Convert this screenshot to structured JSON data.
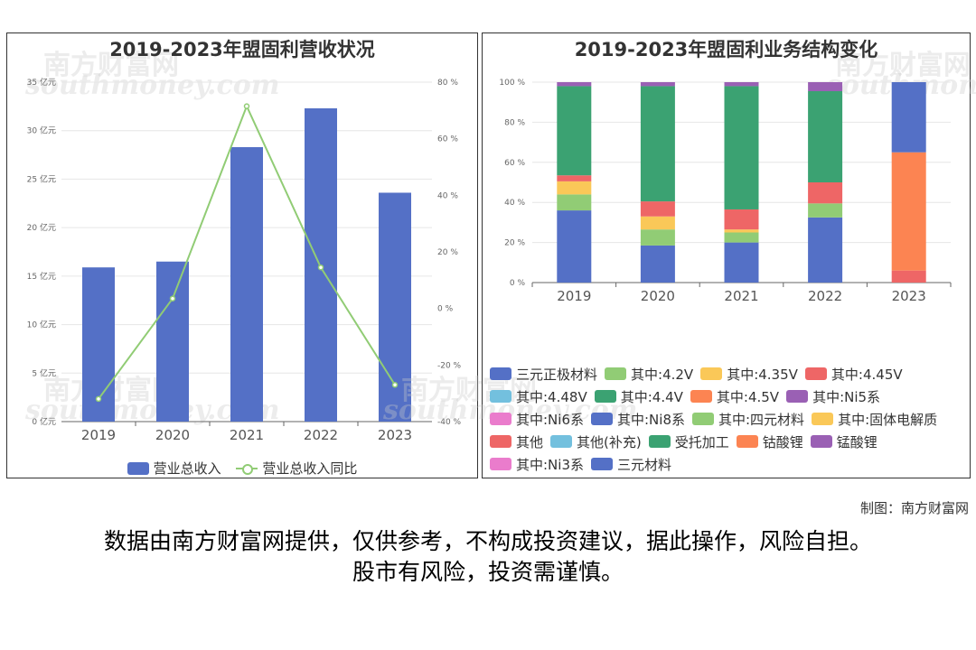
{
  "watermark": {
    "cn": "南方财富网",
    "en": "southmoney.com"
  },
  "chart_data": [
    {
      "type": "bar",
      "title": "2019-2023年盟固利营收状况",
      "categories": [
        "2019",
        "2020",
        "2021",
        "2022",
        "2023"
      ],
      "series": [
        {
          "name": "营业总收入",
          "type": "bar",
          "axis": "left",
          "color": "#5470c6",
          "values": [
            15.9,
            16.5,
            28.3,
            32.3,
            23.6
          ]
        },
        {
          "name": "营业总收入同比",
          "type": "line",
          "axis": "right",
          "color": "#91cc75",
          "values": [
            -32,
            3.5,
            71.5,
            14.5,
            -27
          ]
        }
      ],
      "y_left": {
        "min": 0,
        "max": 35,
        "ticks": [
          0,
          5,
          10,
          15,
          20,
          25,
          30,
          35
        ],
        "unit": "亿元"
      },
      "y_right": {
        "min": -40,
        "max": 80,
        "ticks": [
          -40,
          -20,
          0,
          20,
          40,
          60,
          80
        ],
        "unit": "%"
      },
      "legend": "bottom"
    },
    {
      "type": "bar",
      "stacked": true,
      "title": "2019-2023年盟固利业务结构变化",
      "categories": [
        "2019",
        "2020",
        "2021",
        "2022",
        "2023"
      ],
      "y_axis": {
        "min": 0,
        "max": 100,
        "ticks": [
          0,
          20,
          40,
          60,
          80,
          100
        ],
        "unit": "%"
      },
      "series": [
        {
          "name": "三元正极材料",
          "color": "#5470c6",
          "values": [
            36,
            18.5,
            20,
            32.5,
            0
          ]
        },
        {
          "name": "其中:4.2V",
          "color": "#91cc75",
          "values": [
            8,
            8,
            5,
            7,
            0
          ]
        },
        {
          "name": "其中:4.35V",
          "color": "#fac858",
          "values": [
            6.5,
            6.5,
            1.5,
            0,
            0
          ]
        },
        {
          "name": "其中:4.45V",
          "color": "#ee6666",
          "values": [
            3,
            7.5,
            10,
            10.5,
            6
          ]
        },
        {
          "name": "其中:4.48V",
          "color": "#73c0de",
          "values": [
            0,
            0,
            0,
            0,
            0
          ]
        },
        {
          "name": "其中:4.4V",
          "color": "#3ba272",
          "values": [
            44.5,
            57.5,
            61.5,
            45.5,
            0
          ]
        },
        {
          "name": "其中:4.5V",
          "color": "#fc8452",
          "values": [
            0,
            0,
            0,
            0,
            59
          ]
        },
        {
          "name": "其中:Ni5系",
          "color": "#9a60b4",
          "values": [
            2,
            2,
            2,
            4.5,
            0
          ]
        },
        {
          "name": "其中:Ni6系",
          "color": "#ea7ccc",
          "values": [
            0,
            0,
            0,
            0,
            0
          ]
        },
        {
          "name": "其中:Ni8系",
          "color": "#5470c6",
          "values": [
            0,
            0,
            0,
            0,
            35
          ]
        },
        {
          "name": "其中:四元材料",
          "color": "#91cc75",
          "values": [
            0,
            0,
            0,
            0,
            0
          ]
        },
        {
          "name": "其中:固体电解质",
          "color": "#fac858",
          "values": [
            0,
            0,
            0,
            0,
            0
          ]
        },
        {
          "name": "其他",
          "color": "#ee6666",
          "values": [
            0,
            0,
            0,
            0,
            0
          ]
        },
        {
          "name": "其他(补充)",
          "color": "#73c0de",
          "values": [
            0,
            0,
            0,
            0,
            0
          ]
        },
        {
          "name": "受托加工",
          "color": "#3ba272",
          "values": [
            0,
            0,
            0,
            0,
            0
          ]
        },
        {
          "name": "钴酸锂",
          "color": "#fc8452",
          "values": [
            0,
            0,
            0,
            0,
            0
          ]
        },
        {
          "name": "锰酸锂",
          "color": "#9a60b4",
          "values": [
            0,
            0,
            0,
            0,
            0
          ]
        },
        {
          "name": "其中:Ni3系",
          "color": "#ea7ccc",
          "values": [
            0,
            0,
            0,
            0,
            0
          ]
        },
        {
          "name": "三元材料",
          "color": "#5470c6",
          "values": [
            0,
            0,
            0,
            0,
            0
          ]
        }
      ],
      "legend": "bottom"
    }
  ],
  "credit": "制图：南方财富网",
  "disclaimer": {
    "line1": "数据由南方财富网提供，仅供参考，不构成投资建议，据此操作，风险自担。",
    "line2": "股市有风险，投资需谨慎。"
  }
}
